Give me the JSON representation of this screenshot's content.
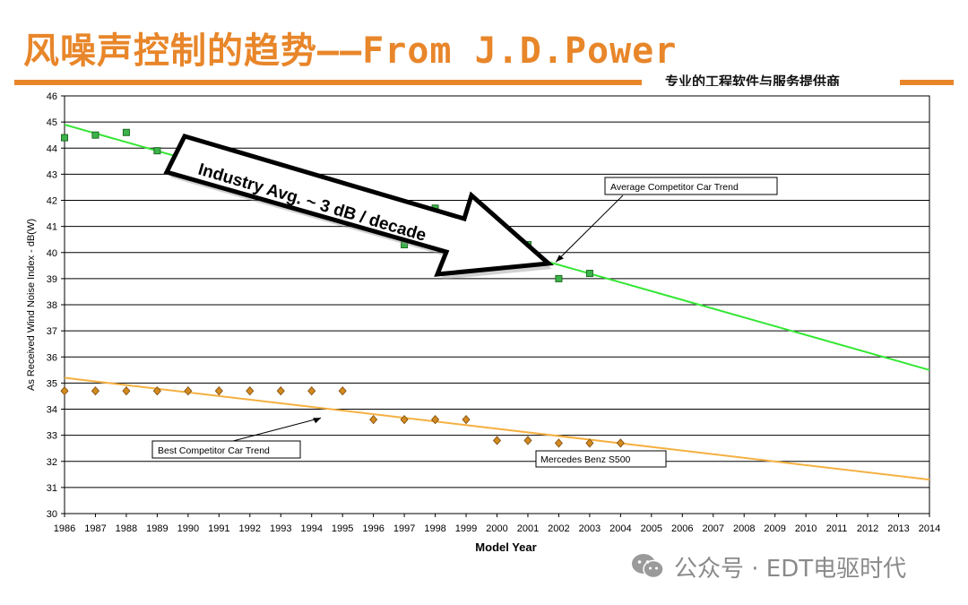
{
  "header": {
    "title": "风噪声控制的趋势——From J.D.Power",
    "subtitle": "专业的工程软件与服务提供商"
  },
  "watermark": {
    "text": "公众号 · EDT电驱时代",
    "icon": "wechat-icon"
  },
  "colors": {
    "accent": "#e8862a",
    "avg_series": "#3cb34a",
    "avg_trend": "#33e633",
    "best_series": "#d38a1e",
    "best_trend": "#f5b041"
  },
  "chart_data": {
    "type": "scatter",
    "xlabel": "Model Year",
    "ylabel": "As Received Wind Noise Index - dB(W)",
    "xlim": [
      1986,
      2014
    ],
    "ylim": [
      30,
      46
    ],
    "grid": true,
    "x_ticks": [
      "1986",
      "1987",
      "1988",
      "1989",
      "1990",
      "1991",
      "1992",
      "1993",
      "1994",
      "1995",
      "1996",
      "1997",
      "1998",
      "1999",
      "2000",
      "2001",
      "2002",
      "2003",
      "2004",
      "2005",
      "2006",
      "2007",
      "2008",
      "2009",
      "2010",
      "2011",
      "2012",
      "2013",
      "2014"
    ],
    "y_ticks": [
      "30",
      "31",
      "32",
      "33",
      "34",
      "35",
      "36",
      "37",
      "38",
      "39",
      "40",
      "41",
      "42",
      "43",
      "44",
      "45",
      "46"
    ],
    "series": [
      {
        "marker": "square",
        "points": [
          [
            1986,
            44.4
          ],
          [
            1987,
            44.5
          ],
          [
            1988,
            44.6
          ],
          [
            1989,
            43.9
          ],
          [
            1997,
            40.3
          ],
          [
            1998,
            41.7
          ],
          [
            2001,
            40.3
          ],
          [
            2002,
            39.0
          ],
          [
            2003,
            39.2
          ]
        ]
      },
      {
        "marker": "diamond",
        "points": [
          [
            1986,
            34.7
          ],
          [
            1987,
            34.7
          ],
          [
            1988,
            34.7
          ],
          [
            1989,
            34.7
          ],
          [
            1990,
            34.7
          ],
          [
            1991,
            34.7
          ],
          [
            1992,
            34.7
          ],
          [
            1993,
            34.7
          ],
          [
            1994,
            34.7
          ],
          [
            1995,
            34.7
          ],
          [
            1996,
            33.6
          ],
          [
            1997,
            33.6
          ],
          [
            1998,
            33.6
          ],
          [
            1999,
            33.6
          ],
          [
            2000,
            32.8
          ],
          [
            2001,
            32.8
          ],
          [
            2002,
            32.7
          ],
          [
            2003,
            32.7
          ],
          [
            2004,
            32.7
          ]
        ]
      }
    ],
    "trend_lines": [
      {
        "start": [
          1986,
          44.9
        ],
        "end": [
          2014,
          35.5
        ]
      },
      {
        "start": [
          1986,
          35.2
        ],
        "end": [
          2014,
          31.3
        ]
      }
    ],
    "annotations": [
      {
        "text": "Average Competitor Car Trend",
        "target": [
          2001.9,
          39.6
        ]
      },
      {
        "text": "Best Competitor  Car Trend",
        "target": [
          1994.3,
          33.7
        ]
      },
      {
        "text": "Mercedes Benz S500"
      },
      {
        "text": "Industry Avg.    ~ 3 dB / decade"
      }
    ]
  }
}
